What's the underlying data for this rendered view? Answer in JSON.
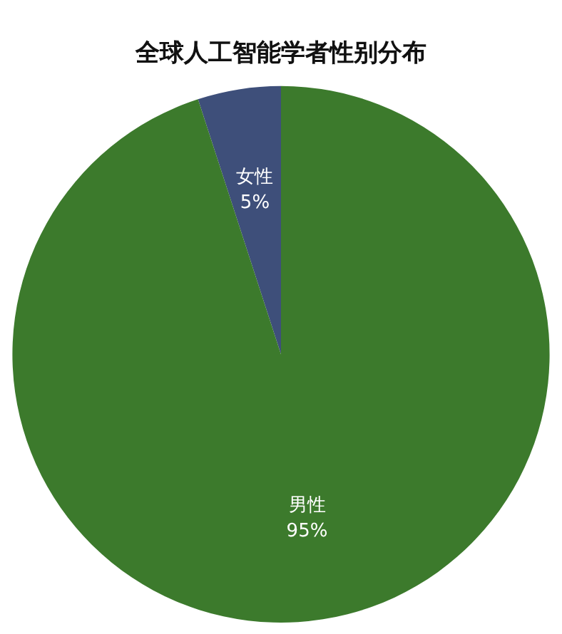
{
  "chart_data": {
    "type": "pie",
    "title": "全球人工智能学者性别分布",
    "categories": [
      "女性",
      "男性"
    ],
    "values": [
      5,
      95
    ],
    "colors": [
      "#3e4f7a",
      "#3c7a2c"
    ],
    "value_labels": [
      "5%",
      "95%"
    ],
    "legend": false
  }
}
